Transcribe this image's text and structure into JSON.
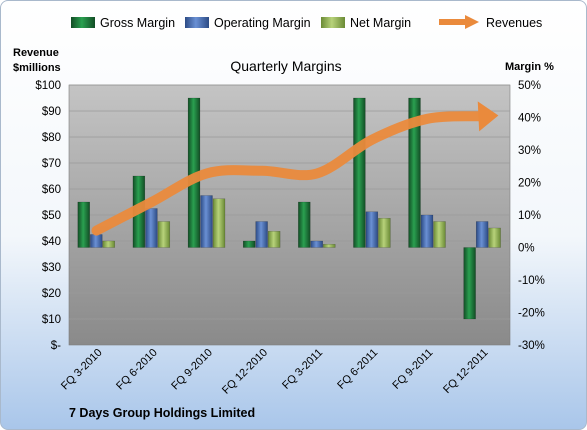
{
  "chart_data": {
    "type": "bar",
    "title": "Quarterly Margins",
    "company": "7 Days Group Holdings Limited",
    "left_axis": {
      "label_line1": "Revenue",
      "label_line2": "$millions",
      "range": [
        0,
        100
      ],
      "ticks": [
        "$-",
        "$10",
        "$20",
        "$30",
        "$40",
        "$50",
        "$60",
        "$70",
        "$80",
        "$90",
        "$100"
      ]
    },
    "right_axis": {
      "label": "Margin %",
      "range": [
        -30,
        50
      ],
      "ticks": [
        "-30%",
        "-20%",
        "-10%",
        "0%",
        "10%",
        "20%",
        "30%",
        "40%",
        "50%"
      ]
    },
    "categories": [
      "FQ 3-2010",
      "FQ 6-2010",
      "FQ 9-2010",
      "FQ 12-2010",
      "FQ 3-2011",
      "FQ 6-2011",
      "FQ 9-2011",
      "FQ 12-2011"
    ],
    "series": [
      {
        "name": "Gross Margin",
        "kind": "bar",
        "axis": "right",
        "color": "#1f7a3c",
        "values": [
          14,
          22,
          46,
          2,
          14,
          46,
          46,
          -22
        ]
      },
      {
        "name": "Operating Margin",
        "kind": "bar",
        "axis": "right",
        "color": "#4a6fb5",
        "values": [
          4,
          12,
          16,
          8,
          2,
          11,
          10,
          8
        ]
      },
      {
        "name": "Net Margin",
        "kind": "bar",
        "axis": "right",
        "color": "#98b65a",
        "values": [
          2,
          8,
          15,
          5,
          1,
          9,
          8,
          6
        ]
      },
      {
        "name": "Revenues",
        "kind": "arrow-line",
        "axis": "left",
        "color": "#ea8a3c",
        "values": [
          44,
          55,
          66,
          67,
          66,
          79,
          87,
          88
        ]
      }
    ],
    "grid": true,
    "legend": "top"
  }
}
